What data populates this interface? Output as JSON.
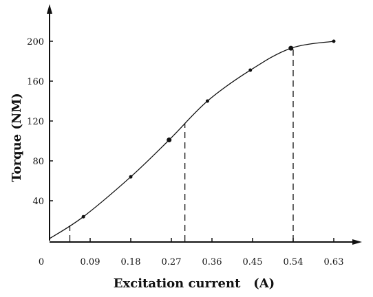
{
  "chart_data": {
    "type": "line",
    "title": "",
    "xlabel": "Excitation current   (A)",
    "ylabel": "Torque  (NM)",
    "x_ticks": [
      "0",
      "0.09",
      "0.18",
      "0.27",
      "0.36",
      "0.45",
      "0.54",
      "0.63"
    ],
    "y_ticks": [
      "40",
      "80",
      "120",
      "160",
      "200"
    ],
    "xlim": [
      0,
      0.63
    ],
    "ylim": [
      0,
      200
    ],
    "grid": false,
    "series": [
      {
        "x": [
          0,
          0.075,
          0.18,
          0.265,
          0.35,
          0.445,
          0.535,
          0.63
        ],
        "y": [
          2,
          24,
          64,
          101,
          140,
          171,
          193,
          200
        ]
      }
    ],
    "reference_lines_x": [
      0.045,
      0.3,
      0.54
    ]
  }
}
